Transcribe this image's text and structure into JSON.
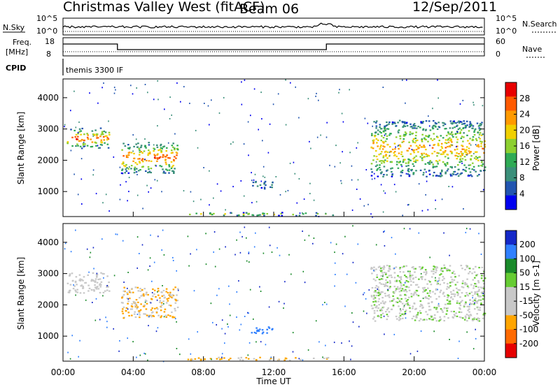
{
  "header": {
    "station": "Christmas Valley West (fitACF)",
    "beam": "Beam 06",
    "date": "12/Sep/2011"
  },
  "strips": {
    "nsky_label": "N.Sky",
    "nsearch_label": "N.Search",
    "counts_ticks": [
      "10^5",
      "10^0"
    ],
    "freq_label_1": "Freq.",
    "freq_label_2": "[MHz]",
    "freq_ticks": [
      "18",
      "8"
    ],
    "nave_label": "Nave",
    "nave_ticks": [
      "60",
      "0"
    ],
    "cpid_label": "CPID",
    "cpid_value": "themis 3300 IF"
  },
  "colors": {
    "power": [
      "#0000f0",
      "#2255b0",
      "#3b8f7a",
      "#2faa55",
      "#8dd030",
      "#f0d000",
      "#ff9a00",
      "#ff5a00",
      "#e80000"
    ],
    "velocity": [
      "#1428c8",
      "#3080ff",
      "#1a8a2a",
      "#66cc33",
      "#c8c8c8",
      "#c8c8c8",
      "#ffa500",
      "#ff6a00",
      "#e60000"
    ]
  },
  "chart_data": [
    {
      "type": "heatmap",
      "panel": "power",
      "ylabel": "Slant Range [km]",
      "yticks": [
        "1000",
        "2000",
        "3000",
        "4000"
      ],
      "ylim": [
        200,
        4600
      ],
      "xlim_hours": [
        0,
        24
      ],
      "colorbar_label": "Power [dB]",
      "colorbar_ticks": [
        "4",
        "8",
        "12",
        "16",
        "20",
        "24",
        "28"
      ],
      "color_range": [
        0,
        32
      ],
      "features": [
        {
          "t0": 0.2,
          "t1": 2.6,
          "r0": 2400,
          "r1": 3050,
          "value_peak": 28
        },
        {
          "t0": 3.3,
          "t1": 6.5,
          "r0": 1600,
          "r1": 2600,
          "value_peak": 28
        },
        {
          "t0": 17.5,
          "t1": 24.0,
          "r0": 1500,
          "r1": 3300,
          "value_peak": 24
        },
        {
          "t0": 10.6,
          "t1": 11.9,
          "r0": 1100,
          "r1": 1350,
          "value_peak": 6
        },
        {
          "t0": 7.0,
          "t1": 15.5,
          "r0": 250,
          "r1": 350,
          "value_peak": 20
        }
      ]
    },
    {
      "type": "heatmap",
      "panel": "velocity",
      "ylabel": "Slant Range [km]",
      "yticks": [
        "1000",
        "2000",
        "3000",
        "4000"
      ],
      "ylim": [
        200,
        4600
      ],
      "xlim_hours": [
        0,
        24
      ],
      "colorbar_label": "Velocity [m s-1]",
      "colorbar_ticks": [
        "200",
        "100",
        "50",
        "15",
        "-15",
        "-50",
        "-100",
        "-200"
      ],
      "features": [
        {
          "t0": 0.2,
          "t1": 2.6,
          "r0": 2400,
          "r1": 3050,
          "value": -15
        },
        {
          "t0": 3.3,
          "t1": 6.5,
          "r0": 1600,
          "r1": 2600,
          "value": -50
        },
        {
          "t0": 17.5,
          "t1": 24.0,
          "r0": 1500,
          "r1": 3300,
          "value": 0
        },
        {
          "t0": 10.6,
          "t1": 11.9,
          "r0": 1100,
          "r1": 1350,
          "value": 150
        },
        {
          "t0": 7.0,
          "t1": 15.5,
          "r0": 250,
          "r1": 350,
          "value": -50
        }
      ]
    }
  ],
  "xaxis": {
    "ticks": [
      "00:00",
      "04:00",
      "08:00",
      "12:00",
      "16:00",
      "20:00",
      "00:00"
    ],
    "label": "Time UT"
  }
}
